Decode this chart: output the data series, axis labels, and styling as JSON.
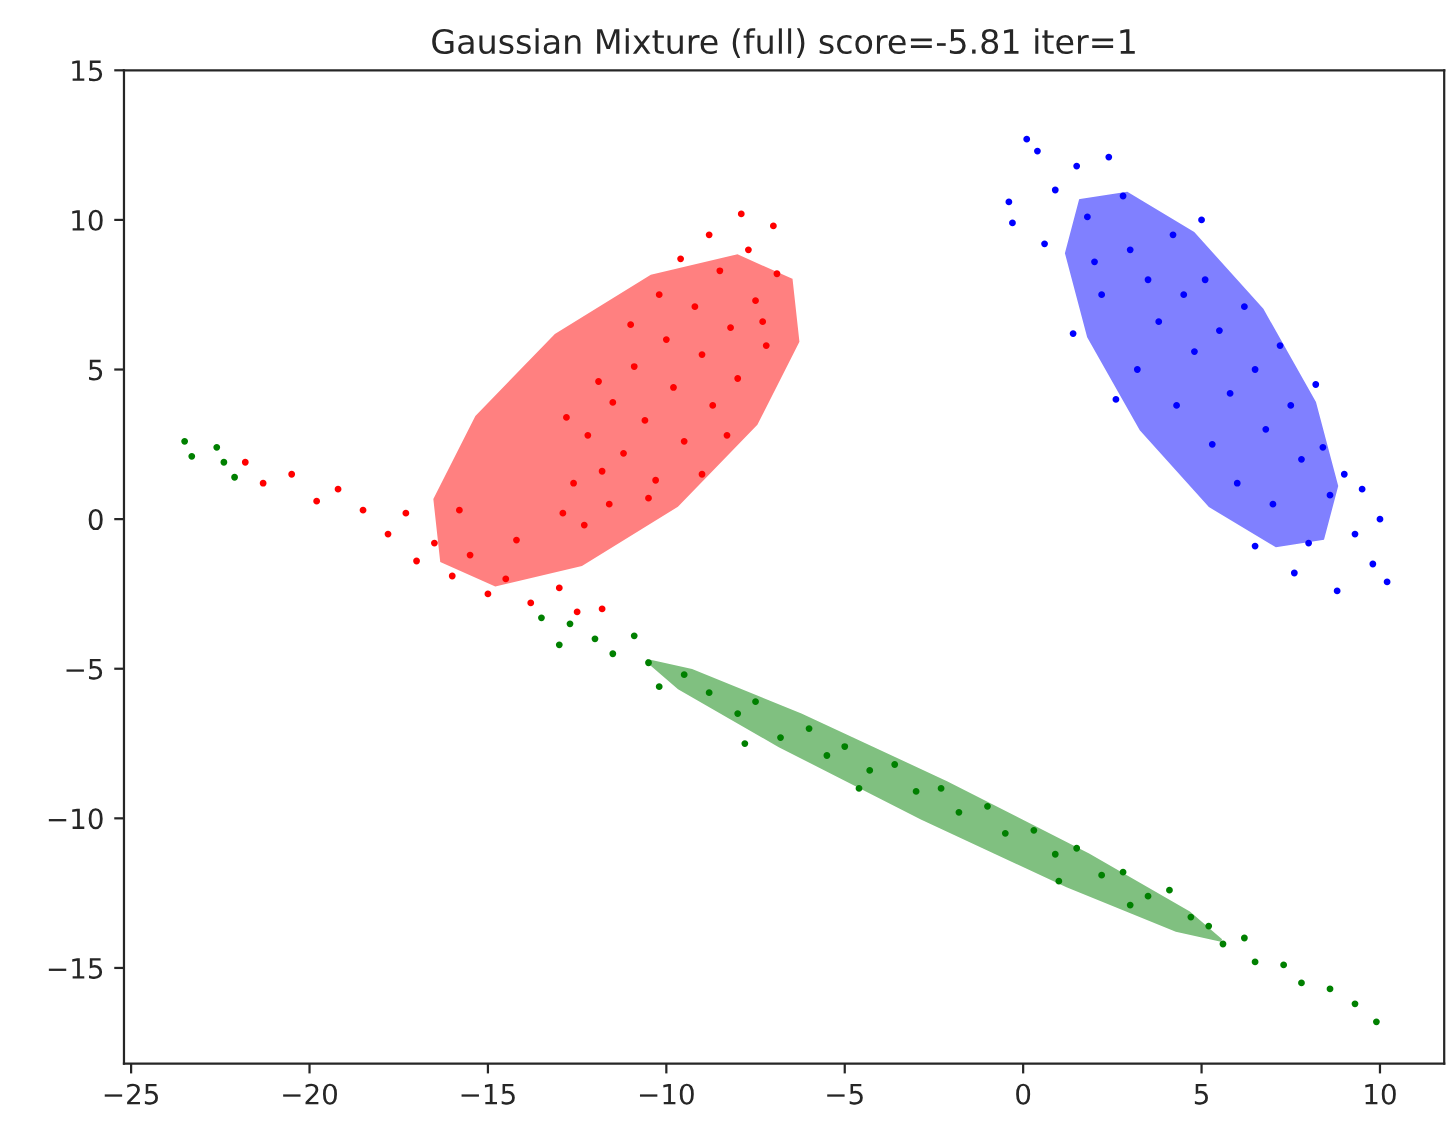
{
  "chart_data": {
    "type": "scatter",
    "title": "Gaussian Mixture (full) score=-5.81 iter=1",
    "xlim": [
      -25.2,
      11.8
    ],
    "ylim": [
      -18.2,
      15
    ],
    "xticks": [
      {
        "value": -25,
        "label": "−25"
      },
      {
        "value": -20,
        "label": "−20"
      },
      {
        "value": -15,
        "label": "−15"
      },
      {
        "value": -10,
        "label": "−10"
      },
      {
        "value": -5,
        "label": "−5"
      },
      0,
      5,
      10
    ],
    "yticks": [
      {
        "value": -15,
        "label": "−15"
      },
      {
        "value": -10,
        "label": "−10"
      },
      {
        "value": -5,
        "label": "−5"
      },
      0,
      5,
      10,
      15
    ],
    "grid": false,
    "series": [
      {
        "type": "area",
        "color": "#ff8080",
        "x": [
          -6.5,
          -8.01,
          -10.42,
          -13.1,
          -15.32,
          -16.49,
          -16.3,
          -14.79,
          -12.38,
          -9.7,
          -7.48,
          -6.31
        ],
        "values": [
          8.0,
          8.8,
          8.12,
          6.15,
          3.42,
          0.66,
          -1.4,
          -2.2,
          -1.52,
          0.45,
          3.18,
          5.94
        ]
      },
      {
        "type": "area",
        "color": "#8080ff",
        "x": [
          1.6,
          2.91,
          4.77,
          6.7,
          8.17,
          8.79,
          8.4,
          7.09,
          5.23,
          3.3,
          1.83,
          1.21
        ],
        "values": [
          10.65,
          10.89,
          9.56,
          7.0,
          3.9,
          1.11,
          -0.65,
          -0.89,
          0.44,
          3.0,
          6.1,
          8.89
        ]
      },
      {
        "type": "area",
        "color": "#80c080",
        "x": [
          5.55,
          4.65,
          1.83,
          -2.15,
          -6.23,
          -9.29,
          -10.55,
          -9.65,
          -6.83,
          -2.85,
          1.23,
          4.29
        ],
        "values": [
          -14.08,
          -13.15,
          -11.22,
          -8.8,
          -6.54,
          -5.05,
          -4.72,
          -5.65,
          -7.58,
          -10.0,
          -12.26,
          -13.75
        ]
      },
      {
        "marker": "circle",
        "color": "#ff0000",
        "x": [
          -12.9,
          -12.6,
          -12.2,
          -11.8,
          -11.5,
          -11.2,
          -10.9,
          -10.6,
          -10.3,
          -10.0,
          -9.8,
          -9.5,
          -9.2,
          -9.0,
          -8.7,
          -8.5,
          -8.2,
          -8.0,
          -7.7,
          -7.5,
          -7.2,
          -7.0,
          -6.9,
          -7.9,
          -11.9,
          -10.5,
          -9.0,
          -8.3,
          -12.3,
          -11.0,
          -9.6,
          -8.8,
          -10.2,
          -7.3,
          -11.6,
          -12.8,
          -21.8,
          -21.3,
          -20.5,
          -19.8,
          -19.2,
          -18.5,
          -17.8,
          -17.3,
          -16.5,
          -16.0,
          -15.5,
          -15.0,
          -14.5,
          -13.8,
          -13.0,
          -12.5,
          -11.8,
          -15.8,
          -14.2,
          -17.0
        ],
        "values": [
          0.2,
          1.2,
          2.8,
          1.6,
          3.9,
          2.2,
          5.1,
          3.3,
          1.3,
          6.0,
          4.4,
          2.6,
          7.1,
          5.5,
          3.8,
          8.3,
          6.4,
          4.7,
          9.0,
          7.3,
          5.8,
          9.8,
          8.2,
          10.2,
          4.6,
          0.7,
          1.5,
          2.8,
          -0.2,
          6.5,
          8.7,
          9.5,
          7.5,
          6.6,
          0.5,
          3.4,
          1.9,
          1.2,
          1.5,
          0.6,
          1.0,
          0.3,
          -0.5,
          0.2,
          -0.8,
          -1.9,
          -1.2,
          -2.5,
          -2.0,
          -2.8,
          -2.3,
          -3.1,
          -3.0,
          0.3,
          -0.7,
          -1.4
        ]
      },
      {
        "marker": "circle",
        "color": "#0000ff",
        "x": [
          0.1,
          0.4,
          -0.4,
          -0.3,
          0.6,
          0.9,
          1.5,
          1.8,
          2.0,
          2.4,
          2.8,
          3.0,
          2.2,
          3.5,
          3.8,
          3.2,
          4.2,
          4.5,
          4.8,
          4.3,
          5.1,
          5.5,
          5.8,
          5.3,
          6.2,
          6.5,
          6.8,
          6.0,
          7.2,
          7.5,
          7.8,
          7.0,
          8.2,
          8.4,
          8.6,
          8.0,
          9.0,
          9.3,
          9.8,
          10.2,
          10.0,
          8.8,
          7.6,
          6.5,
          1.4,
          2.6,
          9.5,
          5.0
        ],
        "values": [
          12.7,
          12.3,
          10.6,
          9.9,
          9.2,
          11.0,
          11.8,
          10.1,
          8.6,
          12.1,
          10.8,
          9.0,
          7.5,
          8.0,
          6.6,
          5.0,
          9.5,
          7.5,
          5.6,
          3.8,
          8.0,
          6.3,
          4.2,
          2.5,
          7.1,
          5.0,
          3.0,
          1.2,
          5.8,
          3.8,
          2.0,
          0.5,
          4.5,
          2.4,
          0.8,
          -0.8,
          1.5,
          -0.5,
          -1.5,
          -2.1,
          0.0,
          -2.4,
          -1.8,
          -0.9,
          6.2,
          4.0,
          1.0,
          10.0
        ]
      },
      {
        "marker": "circle",
        "color": "#008000",
        "x": [
          -23.5,
          -23.3,
          -22.6,
          -22.4,
          -22.1,
          -13.5,
          -13.0,
          -12.7,
          -12.0,
          -11.5,
          -10.9,
          -10.5,
          -10.2,
          -9.5,
          -8.8,
          -8.0,
          -7.5,
          -6.8,
          -6.0,
          -5.5,
          -5.0,
          -4.3,
          -3.6,
          -3.0,
          -2.3,
          -1.8,
          -1.0,
          -0.5,
          0.3,
          0.9,
          1.5,
          2.2,
          2.8,
          3.5,
          4.1,
          4.7,
          5.2,
          5.6,
          6.2,
          6.5,
          7.3,
          7.8,
          8.6,
          9.3,
          9.9,
          -7.8,
          -4.6,
          1.0,
          3.0
        ],
        "values": [
          2.6,
          2.1,
          2.4,
          1.9,
          1.4,
          -3.3,
          -4.2,
          -3.5,
          -4.0,
          -4.5,
          -3.9,
          -4.8,
          -5.6,
          -5.2,
          -5.8,
          -6.5,
          -6.1,
          -7.3,
          -7.0,
          -7.9,
          -7.6,
          -8.4,
          -8.2,
          -9.1,
          -9.0,
          -9.8,
          -9.6,
          -10.5,
          -10.4,
          -11.2,
          -11.0,
          -11.9,
          -11.8,
          -12.6,
          -12.4,
          -13.3,
          -13.6,
          -14.2,
          -14.0,
          -14.8,
          -14.9,
          -15.5,
          -15.7,
          -16.2,
          -16.8,
          -7.5,
          -9.0,
          -12.1,
          -12.9
        ]
      }
    ]
  }
}
